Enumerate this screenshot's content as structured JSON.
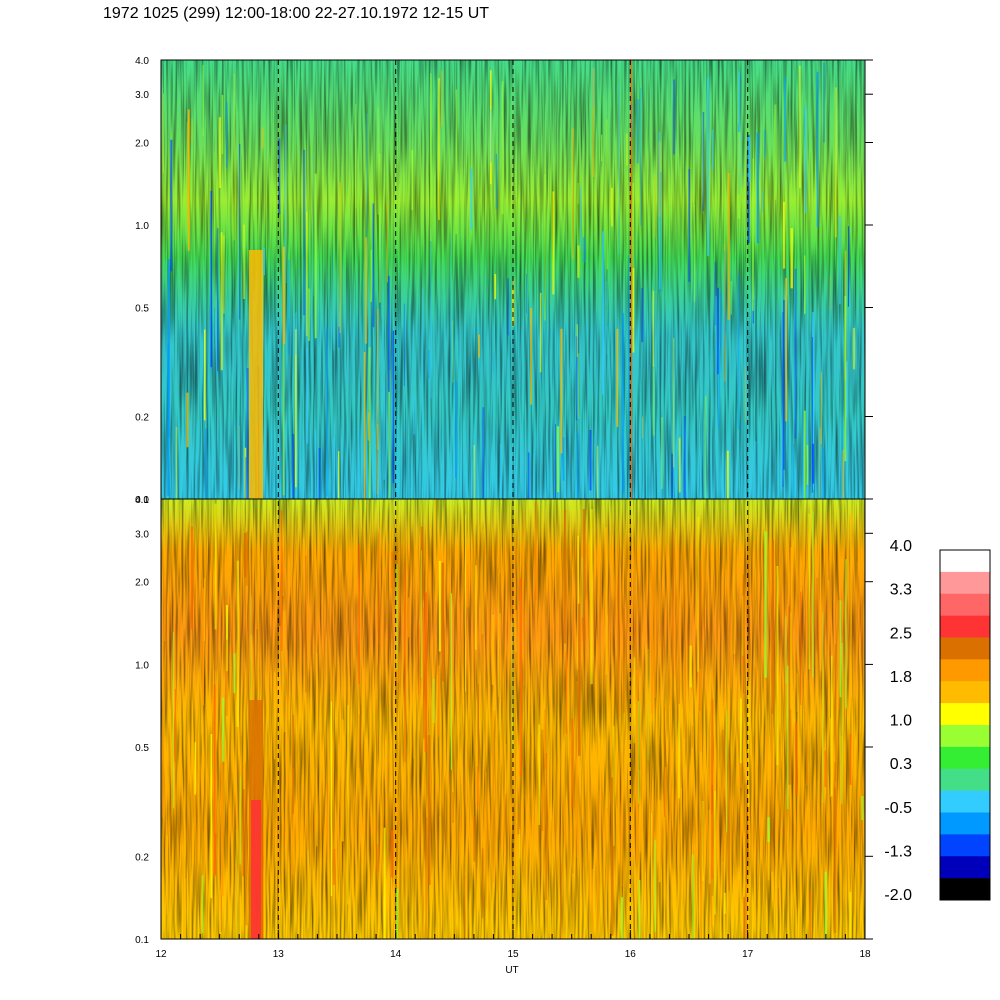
{
  "title": "1972 1025 (299) 12:00-18:00 22-27.10.1972  12-15 UT",
  "chart_data": {
    "type": "heatmap",
    "title": "1972 1025 (299) 12:00-18:00 22-27.10.1972  12-15 UT",
    "xlabel": "UT",
    "xlim": [
      12,
      18
    ],
    "x_ticks": [
      "12",
      "13",
      "14",
      "15",
      "16",
      "17",
      "18"
    ],
    "x_tick_values": [
      12,
      13,
      14,
      15,
      16,
      17,
      18
    ],
    "dashed_vertical_lines_at": [
      13,
      14,
      15,
      16,
      17
    ],
    "y_scale": "log",
    "ylim": [
      0.1,
      4.0
    ],
    "y_ticks": [
      "4.0",
      "3.0",
      "2.0",
      "1.0",
      "0.5",
      "0.2",
      "0.1"
    ],
    "y_tick_values": [
      4.0,
      3.0,
      2.0,
      1.0,
      0.5,
      0.2,
      0.1
    ],
    "panels": [
      {
        "position": "top",
        "dominant_levels": "0.3 to 1.0 (green/yellow-green), lower values (cyan/blue) near bottom-right"
      },
      {
        "position": "bottom",
        "dominant_levels": "1.0 to 2.5 (yellow/orange), red near 12.8 UT at low frequencies"
      }
    ],
    "colorbar": {
      "labels": [
        "4.0",
        "3.3",
        "2.5",
        "1.8",
        "1.0",
        "0.3",
        "-0.5",
        "-1.3",
        "-2.0"
      ],
      "colors": [
        "#ffffff",
        "#ff9999",
        "#ff6666",
        "#ff3333",
        "#d97000",
        "#ff9900",
        "#ffbb00",
        "#ffff00",
        "#99ff33",
        "#33ee33",
        "#44dd88",
        "#33ccff",
        "#0099ff",
        "#0044ff",
        "#0000bb",
        "#000000"
      ]
    }
  }
}
